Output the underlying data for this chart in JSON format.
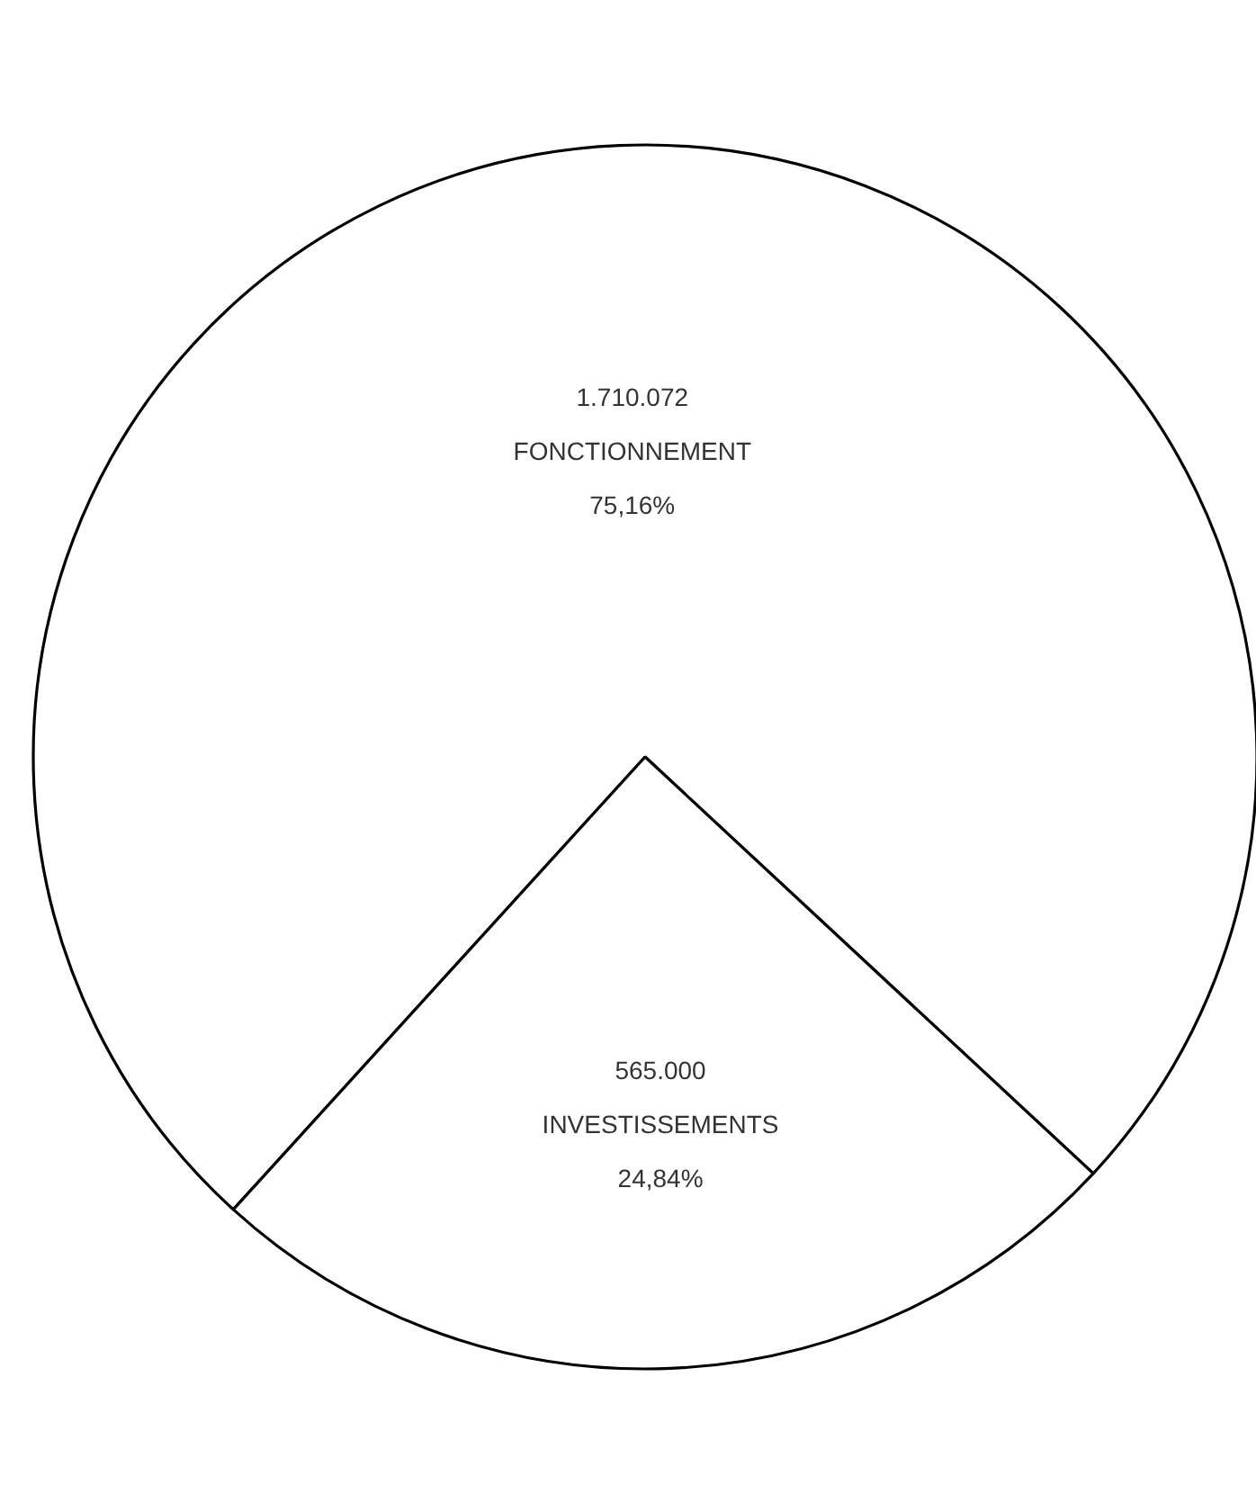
{
  "chart_data": {
    "type": "pie",
    "categories": [
      "FONCTIONNEMENT",
      "INVESTISSEMENTS"
    ],
    "values": [
      1710072,
      565000
    ],
    "value_labels": [
      "1.710.072",
      "565.000"
    ],
    "colors": [
      "#ffffff",
      "#ffffff"
    ],
    "annotations": [
      {
        "text": "75,16%",
        "x": "FONCTIONNEMENT"
      },
      {
        "text": "24,84%",
        "x": "INVESTISSEMENTS"
      }
    ]
  }
}
